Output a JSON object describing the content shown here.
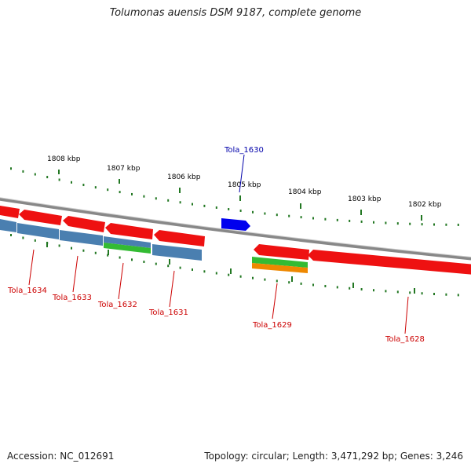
{
  "title": "Tolumonas auensis DSM 9187, complete genome",
  "ruler": {
    "ticks": [
      {
        "label": "1808 kbp",
        "value": 1808
      },
      {
        "label": "1807 kbp",
        "value": 1807
      },
      {
        "label": "1806 kbp",
        "value": 1806
      },
      {
        "label": "1805 kbp",
        "value": 1805
      },
      {
        "label": "1804 kbp",
        "value": 1804
      },
      {
        "label": "1803 kbp",
        "value": 1803
      },
      {
        "label": "1802 kbp",
        "value": 1802
      }
    ]
  },
  "genes": [
    {
      "label": "Tola_1634",
      "label_color": "#cc0000"
    },
    {
      "label": "Tola_1633",
      "label_color": "#cc0000"
    },
    {
      "label": "Tola_1632",
      "label_color": "#cc0000"
    },
    {
      "label": "Tola_1631",
      "label_color": "#cc0000"
    },
    {
      "label": "Tola_1630",
      "label_color": "#0000aa"
    },
    {
      "label": "Tola_1629",
      "label_color": "#cc0000"
    },
    {
      "label": "Tola_1628",
      "label_color": "#cc0000"
    }
  ],
  "colors": {
    "cds": "#ee1111",
    "rna": "#0000ee",
    "cog_blue": "#4a7fb0",
    "cog_green": "#33bb33",
    "cog_orange": "#ee8800",
    "backbone": "#888888",
    "tick": "#227722"
  },
  "footer": {
    "accession": "Accession: NC_012691",
    "summary": "Topology: circular; Length: 3,471,292 bp; Genes: 3,246"
  }
}
